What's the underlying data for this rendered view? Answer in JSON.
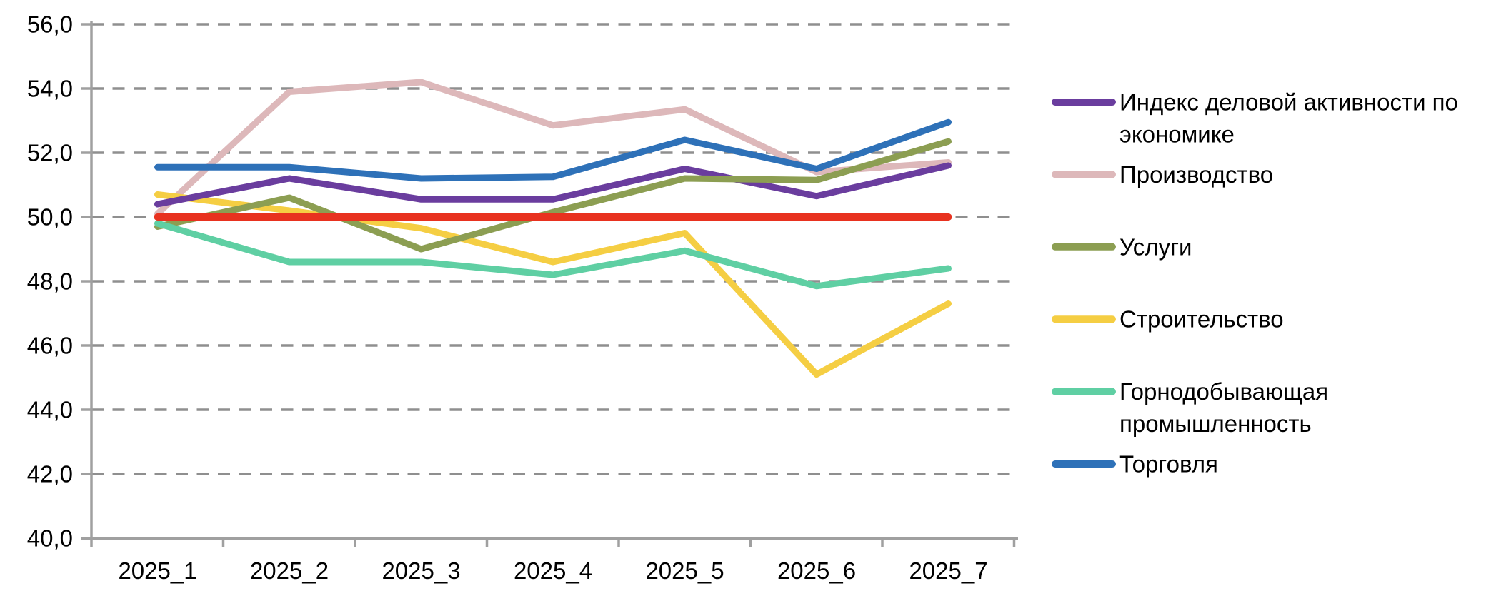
{
  "chart_data": {
    "type": "line",
    "title": "",
    "categories": [
      "2025_1",
      "2025_2",
      "2025_3",
      "2025_4",
      "2025_5",
      "2025_6",
      "2025_7"
    ],
    "series": [
      {
        "name": "Индекс деловой активности по экономике",
        "label_lines": [
          "Индекс деловой активности по",
          "экономике"
        ],
        "color": "#6a3d9e",
        "values": [
          50.4,
          51.2,
          50.55,
          50.55,
          51.5,
          50.65,
          51.6
        ]
      },
      {
        "name": "Производство",
        "label_lines": [
          "Производство"
        ],
        "color": "#ddb8ba",
        "values": [
          50.1,
          53.9,
          54.2,
          52.85,
          53.35,
          51.4,
          51.7
        ]
      },
      {
        "name": "Услуги",
        "label_lines": [
          "Услуги"
        ],
        "color": "#8c9e52",
        "values": [
          49.7,
          50.6,
          49.0,
          50.15,
          51.2,
          51.15,
          52.35
        ]
      },
      {
        "name": "Строительство",
        "label_lines": [
          "Строительство"
        ],
        "color": "#f5ce43",
        "values": [
          50.7,
          50.2,
          49.65,
          48.6,
          49.5,
          45.1,
          47.3
        ]
      },
      {
        "name": "Горнодобывающая промышленность",
        "label_lines": [
          "Горнодобывающая",
          "промышленность"
        ],
        "color": "#5fcfa3",
        "values": [
          49.8,
          48.6,
          48.6,
          48.2,
          48.95,
          47.85,
          48.4
        ]
      },
      {
        "name": "Торговля",
        "label_lines": [
          "Торговля"
        ],
        "color": "#2e71b8",
        "values": [
          51.55,
          51.55,
          51.2,
          51.25,
          52.4,
          51.5,
          52.95
        ]
      }
    ],
    "reference_line": {
      "value": 50.0,
      "color": "#e8321f"
    },
    "ylim": [
      40,
      56
    ],
    "ytick_step": 2,
    "y_tick_labels": [
      "40,0",
      "42,0",
      "44,0",
      "46,0",
      "48,0",
      "50,0",
      "52,0",
      "54,0",
      "56,0"
    ],
    "x_tick_labels": [
      "2025_1",
      "2025_2",
      "2025_3",
      "2025_4",
      "2025_5",
      "2025_6",
      "2025_7"
    ],
    "grid": "horizontal-dashed",
    "legend_position": "right",
    "colors": {
      "grid": "#8f8f8f",
      "axis": "#a0a0a0",
      "text": "#000000",
      "background": "#ffffff"
    }
  }
}
